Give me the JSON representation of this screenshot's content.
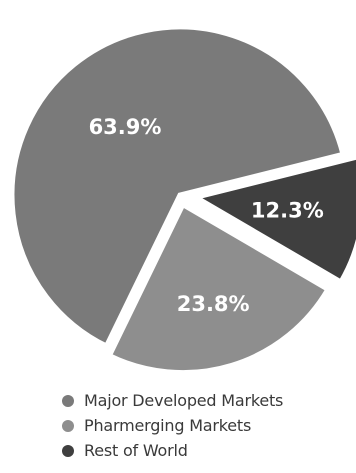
{
  "chart_data": {
    "type": "pie",
    "title": "",
    "categories": [
      "Major Developed Markets",
      "Pharmerging Markets",
      "Rest of World"
    ],
    "values": [
      63.9,
      23.8,
      12.3
    ],
    "labels": [
      "63.9%",
      "23.8%",
      "12.3%"
    ],
    "unit": "%",
    "colors": [
      "#7a7a7a",
      "#8e8e8e",
      "#3f3f3f"
    ],
    "exploded": true,
    "legend_position": "bottom-left"
  },
  "legend": [
    {
      "label": "Major Developed Markets",
      "color": "#7a7a7a"
    },
    {
      "label": "Pharmerging Markets",
      "color": "#8e8e8e"
    },
    {
      "label": "Rest of World",
      "color": "#3f3f3f"
    }
  ]
}
